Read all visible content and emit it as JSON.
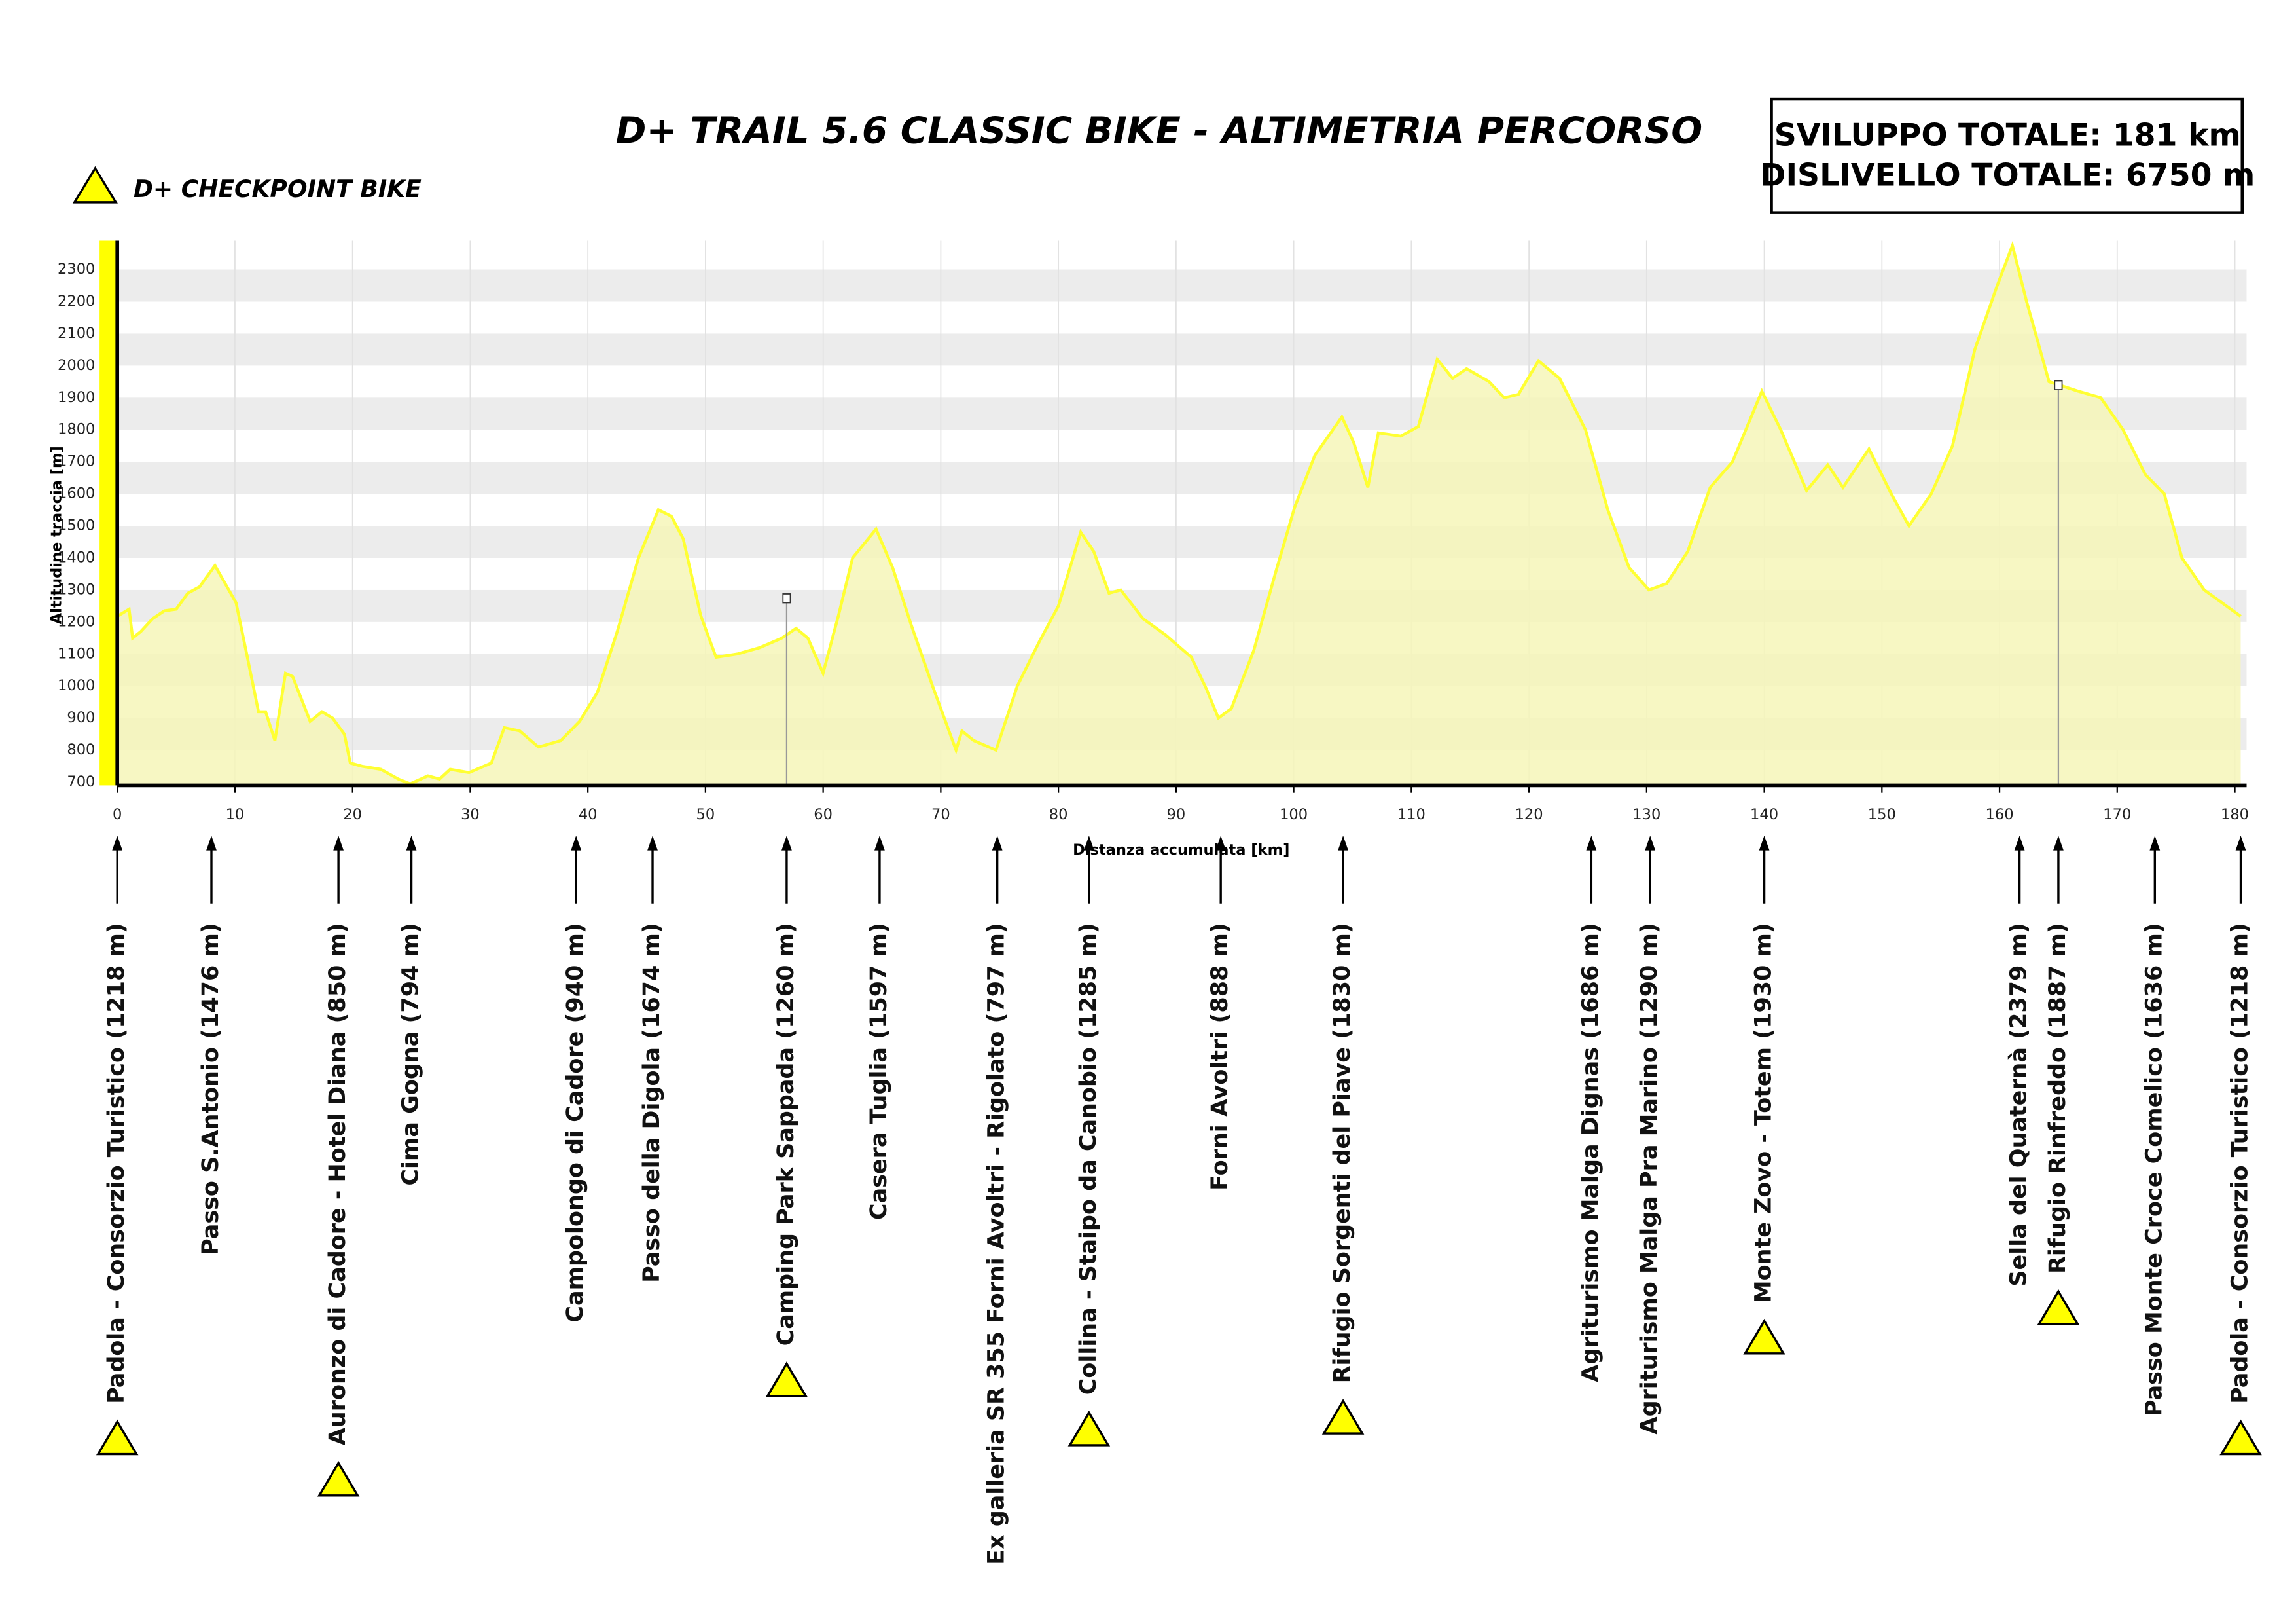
{
  "title": "D+ TRAIL 5.6  CLASSIC BIKE   -   ALTIMETRIA PERCORSO",
  "legend": "D+ CHECKPOINT BIKE",
  "info": [
    "SVILUPPO TOTALE:  181 km",
    "DISLIVELLO TOTALE:   6750 m"
  ],
  "chart_data": {
    "type": "area",
    "xlabel": "Distanza accumulata [km]",
    "ylabel": "Altitudine traccia [m]",
    "color": "#ffff33",
    "fill": "#f6f6b8",
    "xlim": [
      0,
      181
    ],
    "ylim": [
      690,
      2390
    ],
    "xticks": [
      0,
      10,
      20,
      30,
      40,
      50,
      60,
      70,
      80,
      90,
      100,
      110,
      120,
      130,
      140,
      150,
      160,
      170,
      180
    ],
    "yticks": [
      700,
      800,
      900,
      1000,
      1100,
      1200,
      1300,
      1400,
      1500,
      1600,
      1700,
      1800,
      1900,
      2000,
      2100,
      2200,
      2300
    ],
    "grid": true,
    "x": [
      0,
      1,
      1.3,
      2,
      3,
      4,
      5,
      6,
      7,
      8.3,
      10.1,
      11,
      12,
      12.6,
      13.4,
      14.3,
      14.9,
      16.4,
      17.4,
      18.3,
      19.3,
      19.8,
      20.8,
      22.4,
      23.9,
      24.9,
      26.4,
      27.4,
      28.3,
      29.9,
      31.8,
      32.9,
      34.2,
      35.8,
      37.7,
      39.3,
      40.8,
      42.5,
      44.3,
      46,
      47.1,
      48.1,
      49.6,
      50.9,
      52.7,
      54.6,
      56.5,
      57.7,
      58.7,
      60,
      61.3,
      62.5,
      64.5,
      65.9,
      67.5,
      69.3,
      71.3,
      71.8,
      72.8,
      74.7,
      76.5,
      78.4,
      80,
      81.9,
      83,
      84.3,
      85.3,
      87.2,
      89.1,
      91.3,
      92.6,
      93.6,
      94.7,
      96.6,
      98.5,
      100.1,
      101.8,
      104.1,
      105.1,
      106.3,
      107.2,
      109.1,
      110.6,
      112.2,
      113.5,
      114.7,
      116.6,
      117.9,
      119.1,
      120.8,
      122.6,
      124.8,
      126.7,
      128.5,
      130.2,
      131.7,
      133.5,
      135.4,
      137.3,
      139.8,
      141.4,
      143.6,
      145.4,
      146.7,
      148.9,
      150.8,
      152.3,
      154.2,
      156,
      157.9,
      159.8,
      161.1,
      162.3,
      164.2,
      166.7,
      168.6,
      170.5,
      172.4,
      174,
      175.5,
      177.4,
      180.5
    ],
    "values": [
      1218,
      1240,
      1150,
      1170,
      1210,
      1235,
      1240,
      1290,
      1310,
      1376,
      1260,
      1100,
      920,
      920,
      830,
      1040,
      1030,
      890,
      920,
      900,
      850,
      760,
      750,
      740,
      710,
      695,
      720,
      710,
      740,
      730,
      760,
      870,
      860,
      810,
      830,
      890,
      980,
      1170,
      1400,
      1550,
      1530,
      1460,
      1220,
      1090,
      1100,
      1120,
      1150,
      1180,
      1150,
      1040,
      1220,
      1400,
      1490,
      1370,
      1190,
      1000,
      800,
      860,
      830,
      800,
      1000,
      1140,
      1250,
      1480,
      1420,
      1290,
      1300,
      1210,
      1160,
      1090,
      990,
      900,
      930,
      1110,
      1360,
      1560,
      1720,
      1840,
      1760,
      1620,
      1790,
      1780,
      1810,
      2020,
      1960,
      1990,
      1950,
      1900,
      1910,
      2015,
      1960,
      1800,
      1550,
      1370,
      1300,
      1320,
      1420,
      1620,
      1700,
      1920,
      1800,
      1610,
      1690,
      1620,
      1740,
      1600,
      1500,
      1600,
      1750,
      2050,
      2250,
      2375,
      2200,
      1950,
      1920,
      1900,
      1800,
      1660,
      1600,
      1400,
      1300,
      1218
    ],
    "markers": [
      {
        "km": 56.9,
        "elevation": 1260
      },
      {
        "km": 165,
        "elevation": 1925
      }
    ],
    "waypoints": [
      {
        "label": "Padola - Consorzio Turistico  (1218 m)",
        "km": 0,
        "checkpoint": true
      },
      {
        "label": "Passo S.Antonio  (1476 m)",
        "km": 8,
        "checkpoint": false
      },
      {
        "label": "Auronzo di Cadore - Hotel Diana  (850 m)",
        "km": 18.8,
        "checkpoint": true
      },
      {
        "label": "Cima Gogna  (794 m)",
        "km": 25,
        "checkpoint": false
      },
      {
        "label": "Campolongo di Cadore  (940 m)",
        "km": 39,
        "checkpoint": false
      },
      {
        "label": "Passo della Digola  (1674 m)",
        "km": 45.5,
        "checkpoint": false
      },
      {
        "label": "Camping Park Sappada  (1260 m)",
        "km": 56.9,
        "checkpoint": true
      },
      {
        "label": "Casera Tuglia  (1597 m)",
        "km": 64.8,
        "checkpoint": false
      },
      {
        "label": "Ex galleria SR 355 Forni Avoltri - Rigolato  (797 m)",
        "km": 74.8,
        "checkpoint": false
      },
      {
        "label": "Collina - Staipo da Canobio  (1285 m)",
        "km": 82.6,
        "checkpoint": true
      },
      {
        "label": "Forni Avoltri  (888 m)",
        "km": 93.8,
        "checkpoint": false
      },
      {
        "label": "Rifugio Sorgenti del Piave  (1830 m)",
        "km": 104.2,
        "checkpoint": true
      },
      {
        "label": "Agriturismo Malga Dignas  (1686 m)",
        "km": 125.3,
        "checkpoint": false
      },
      {
        "label": "Agriturismo Malga Pra Marino  (1290 m)",
        "km": 130.3,
        "checkpoint": false
      },
      {
        "label": "Monte Zovo - Totem  (1930 m)",
        "km": 140,
        "checkpoint": true
      },
      {
        "label": "Sella del Quaternà  (2379 m)",
        "km": 161.7,
        "checkpoint": false
      },
      {
        "label": "Rifugio Rinfreddo  (1887 m)",
        "km": 165,
        "checkpoint": true
      },
      {
        "label": "Passo Monte Croce Comelico  (1636 m)",
        "km": 173.2,
        "checkpoint": false
      },
      {
        "label": "Padola - Consorzio Turistico  (1218 m)",
        "km": 180.5,
        "checkpoint": true
      }
    ]
  }
}
